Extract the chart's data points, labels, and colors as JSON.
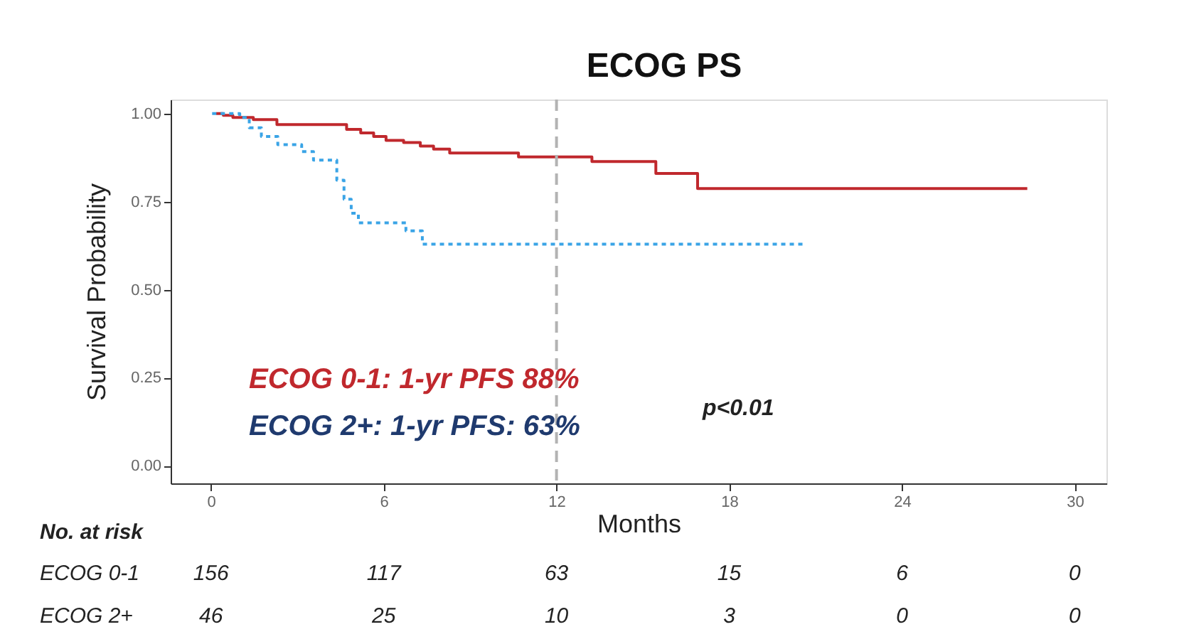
{
  "chart_data": {
    "type": "step",
    "title": "ECOG PS",
    "xlabel": "Months",
    "ylabel": "Survival Probability",
    "series": [
      {
        "color": "#c0282d",
        "line_style": "solid",
        "x": [
          0.18,
          0.43,
          0.76,
          1.47,
          2.29,
          4.71,
          5.2,
          5.65,
          6.08,
          6.69,
          7.27,
          7.73,
          8.29,
          10.68,
          13.23,
          15.45,
          16.9,
          28.35
        ],
        "values": [
          1.0,
          0.995,
          0.989,
          0.983,
          0.969,
          0.955,
          0.945,
          0.935,
          0.924,
          0.918,
          0.908,
          0.899,
          0.888,
          0.877,
          0.864,
          0.83,
          0.787,
          0.787
        ]
      },
      {
        "color": "#3aa4e6",
        "line_style": "dotted",
        "x": [
          0.04,
          1.0,
          1.33,
          1.75,
          2.32,
          3.15,
          3.56,
          4.13,
          4.37,
          4.62,
          4.87,
          5.12,
          6.77,
          7.34,
          20.6
        ],
        "values": [
          1.0,
          0.989,
          0.96,
          0.935,
          0.912,
          0.892,
          0.868,
          0.868,
          0.811,
          0.757,
          0.717,
          0.69,
          0.667,
          0.629,
          0.629
        ]
      }
    ],
    "xlim": [
      -1.4,
      31.1
    ],
    "xticks": [
      0,
      6,
      12,
      18,
      24,
      30
    ],
    "ylim": [
      -0.05,
      1.04
    ],
    "yticks": [
      {
        "value": 0,
        "label": "0.00"
      },
      {
        "value": 0.25,
        "label": "0.25"
      },
      {
        "value": 0.5,
        "label": "0.50"
      },
      {
        "value": 0.75,
        "label": "0.75"
      },
      {
        "value": 1,
        "label": "1.00"
      }
    ],
    "ref_lines": [
      {
        "axis": "x",
        "value": 12,
        "color": "#b3b3b3",
        "line_style": "dashed"
      }
    ],
    "grid": false,
    "annotations": [
      "ECOG 0-1: 1-yr PFS 88%",
      "ECOG 2+: 1-yr PFS: 63%",
      "p<0.01",
      "No. at risk",
      "ECOG 0-1",
      "156",
      "117",
      "63",
      "15",
      "6",
      "0",
      "ECOG 2+",
      "46",
      "25",
      "10",
      "3",
      "0",
      "0"
    ]
  }
}
